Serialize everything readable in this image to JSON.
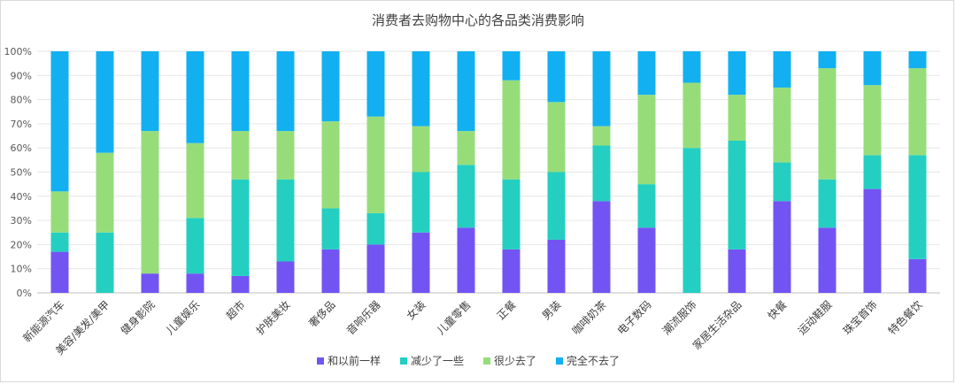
{
  "chart_data": {
    "type": "bar",
    "stacked": "percent",
    "title": "消费者去购物中心的各品类消费影响",
    "xlabel": "",
    "ylabel": "",
    "ylim": [
      0,
      100
    ],
    "yticks": [
      "0%",
      "10%",
      "20%",
      "30%",
      "40%",
      "50%",
      "60%",
      "70%",
      "80%",
      "90%",
      "100%"
    ],
    "legend_position": "bottom",
    "grid": true,
    "categories": [
      "新能源汽车",
      "美容/美发/美甲",
      "健身影院",
      "儿童娱乐",
      "超市",
      "护肤美妆",
      "奢侈品",
      "音响乐器",
      "女装",
      "儿童零售",
      "正餐",
      "男装",
      "咖啡奶茶",
      "电子数码",
      "潮流服饰",
      "家居生活杂品",
      "快餐",
      "运动鞋服",
      "珠宝首饰",
      "特色餐饮"
    ],
    "series": [
      {
        "name": "和以前一样",
        "color": "#7254f3",
        "values": [
          17,
          0,
          8,
          8,
          7,
          13,
          18,
          20,
          25,
          27,
          18,
          22,
          38,
          27,
          0,
          18,
          38,
          27,
          43,
          14
        ]
      },
      {
        "name": "减少了一些",
        "color": "#24cfc1",
        "values": [
          8,
          25,
          0,
          23,
          40,
          34,
          17,
          13,
          25,
          26,
          29,
          28,
          23,
          18,
          60,
          45,
          16,
          20,
          14,
          43
        ]
      },
      {
        "name": "很少去了",
        "color": "#96dd7a",
        "values": [
          17,
          33,
          59,
          31,
          20,
          20,
          36,
          40,
          19,
          14,
          41,
          29,
          8,
          37,
          27,
          19,
          31,
          46,
          29,
          36
        ]
      },
      {
        "name": "完全不去了",
        "color": "#12b0f0",
        "values": [
          58,
          42,
          33,
          38,
          33,
          33,
          29,
          27,
          31,
          33,
          12,
          21,
          31,
          18,
          13,
          18,
          15,
          7,
          14,
          7
        ]
      }
    ]
  }
}
